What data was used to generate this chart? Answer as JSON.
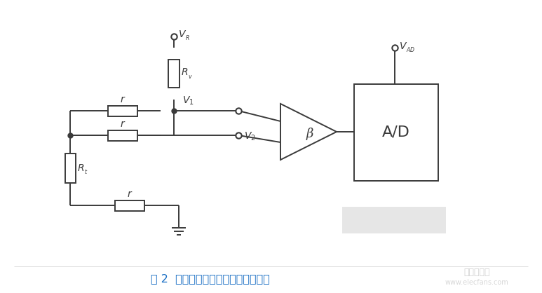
{
  "bg_color": "#ffffff",
  "line_color": "#3a3a3a",
  "title_text": "图 2  恒压分压式三线制法测量原理图",
  "title_color": "#1a6fc4",
  "ad_label": "A/D",
  "beta_label": "β"
}
